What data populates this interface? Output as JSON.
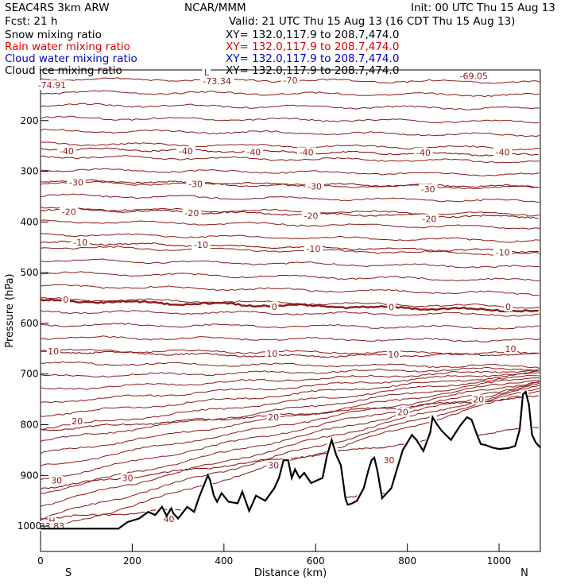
{
  "header": {
    "model": "SEAC4RS  3km ARW",
    "org": "NCAR/MMM",
    "init": "Init: 00 UTC Thu 15 Aug 13",
    "fcst": "Fcst:   21 h",
    "valid": "Valid: 21 UTC Thu 15 Aug 13 (16 CDT Thu 15 Aug 13)"
  },
  "fields": [
    {
      "name": "Snow mixing ratio",
      "xy": "XY= 132.0,117.9 to 208.7,474.0",
      "color": "#000000"
    },
    {
      "name": "Rain water mixing ratio",
      "xy": "XY= 132.0,117.9 to 208.7,474.0",
      "color": "#ff0000"
    },
    {
      "name": "Cloud water mixing ratio",
      "xy": "XY= 132.0,117.9 to 208.7,474.0",
      "color": "#0000c8"
    },
    {
      "name": "Cloud ice mixing ratio",
      "xy": "XY= 132.0,117.9 to 208.7,474.0",
      "color": "#000000"
    }
  ],
  "chart_data": {
    "type": "contour",
    "xlabel": "Distance (km)",
    "ylabel": "Pressure (hPa)",
    "xlim": [
      0,
      1090
    ],
    "ylim": [
      1050,
      100
    ],
    "x_ticks": [
      0,
      200,
      400,
      600,
      800,
      1000
    ],
    "y_ticks": [
      200,
      300,
      400,
      500,
      600,
      700,
      800,
      900,
      1000
    ],
    "x_end_labels": {
      "left": "S",
      "right": "N"
    },
    "contour_color": "#8b1a1a",
    "contour_levels": [
      {
        "level": "-40",
        "pressure": [
          255,
          262,
          268
        ]
      },
      {
        "level": "-30",
        "pressure": [
          318,
          326,
          330
        ]
      },
      {
        "level": "-20",
        "pressure": [
          375,
          384,
          390
        ]
      },
      {
        "level": "-10",
        "pressure": [
          440,
          450,
          458
        ]
      },
      {
        "level": "0",
        "pressure": [
          555,
          565,
          575
        ],
        "bold": true
      },
      {
        "level": "10",
        "pressure": [
          655,
          665,
          660
        ]
      },
      {
        "level": "20",
        "pressure": [
          810,
          780,
          745
        ]
      },
      {
        "level": "30",
        "pressure": [
          925,
          865,
          805
        ]
      },
      {
        "level": "40",
        "pressure": [
          985,
          955,
          900
        ]
      }
    ],
    "contour_labels": [
      {
        "text": "-74.91",
        "x": 25,
        "p": 130
      },
      {
        "text": "L",
        "x": 362,
        "p": 105
      },
      {
        "text": "-73.34",
        "x": 385,
        "p": 122
      },
      {
        "text": "-70",
        "x": 545,
        "p": 120
      },
      {
        "text": "-69.05",
        "x": 945,
        "p": 112
      },
      {
        "text": "-40",
        "x": 57,
        "p": 260
      },
      {
        "text": "-40",
        "x": 317,
        "p": 260
      },
      {
        "text": "-40",
        "x": 465,
        "p": 262
      },
      {
        "text": "-40",
        "x": 580,
        "p": 262
      },
      {
        "text": "-40",
        "x": 835,
        "p": 263
      },
      {
        "text": "-40",
        "x": 1008,
        "p": 262
      },
      {
        "text": "-30",
        "x": 78,
        "p": 322
      },
      {
        "text": "-30",
        "x": 338,
        "p": 325
      },
      {
        "text": "-30",
        "x": 598,
        "p": 330
      },
      {
        "text": "-30",
        "x": 845,
        "p": 335
      },
      {
        "text": "-20",
        "x": 62,
        "p": 380
      },
      {
        "text": "-20",
        "x": 330,
        "p": 382
      },
      {
        "text": "-20",
        "x": 590,
        "p": 388
      },
      {
        "text": "-20",
        "x": 848,
        "p": 394
      },
      {
        "text": "-10",
        "x": 87,
        "p": 440
      },
      {
        "text": "-10",
        "x": 350,
        "p": 445
      },
      {
        "text": "-10",
        "x": 595,
        "p": 453
      },
      {
        "text": "-10",
        "x": 1008,
        "p": 460
      },
      {
        "text": "0",
        "x": 55,
        "p": 553
      },
      {
        "text": "0",
        "x": 510,
        "p": 567
      },
      {
        "text": "0",
        "x": 765,
        "p": 568
      },
      {
        "text": "0",
        "x": 1020,
        "p": 567
      },
      {
        "text": "10",
        "x": 28,
        "p": 655
      },
      {
        "text": "10",
        "x": 505,
        "p": 660
      },
      {
        "text": "10",
        "x": 770,
        "p": 661
      },
      {
        "text": "10",
        "x": 1025,
        "p": 650
      },
      {
        "text": "20",
        "x": 80,
        "p": 793
      },
      {
        "text": "20",
        "x": 508,
        "p": 785
      },
      {
        "text": "20",
        "x": 790,
        "p": 775
      },
      {
        "text": "20",
        "x": 955,
        "p": 750
      },
      {
        "text": "30",
        "x": 35,
        "p": 910
      },
      {
        "text": "30",
        "x": 190,
        "p": 905
      },
      {
        "text": "30",
        "x": 508,
        "p": 880
      },
      {
        "text": "30",
        "x": 760,
        "p": 870
      },
      {
        "text": "40",
        "x": 280,
        "p": 986
      },
      {
        "text": "H",
        "x": 25,
        "p": 990
      },
      {
        "text": "33.83",
        "x": 25,
        "p": 1000
      }
    ],
    "terrain": {
      "x": [
        0,
        170,
        190,
        215,
        235,
        250,
        265,
        275,
        285,
        290,
        300,
        320,
        335,
        345,
        355,
        365,
        370,
        378,
        385,
        395,
        410,
        430,
        440,
        455,
        470,
        490,
        510,
        520,
        530,
        540,
        548,
        555,
        565,
        575,
        590,
        615,
        625,
        635,
        645,
        655,
        665,
        670,
        680,
        690,
        705,
        715,
        722,
        728,
        735,
        745,
        765,
        775,
        790,
        800,
        810,
        820,
        835,
        850,
        855,
        865,
        875,
        895,
        915,
        930,
        940,
        950,
        960,
        970,
        985,
        1000,
        1020,
        1035,
        1045,
        1052,
        1058,
        1065,
        1072,
        1080,
        1090
      ],
      "p": [
        1005,
        1005,
        992,
        985,
        972,
        978,
        962,
        980,
        965,
        975,
        985,
        962,
        972,
        945,
        922,
        900,
        910,
        940,
        952,
        935,
        952,
        955,
        932,
        970,
        940,
        950,
        925,
        905,
        870,
        870,
        905,
        888,
        905,
        895,
        915,
        905,
        860,
        830,
        860,
        880,
        945,
        958,
        955,
        950,
        925,
        890,
        870,
        865,
        892,
        945,
        925,
        895,
        850,
        835,
        820,
        830,
        852,
        815,
        785,
        800,
        812,
        830,
        802,
        785,
        790,
        815,
        838,
        840,
        845,
        848,
        846,
        842,
        810,
        740,
        735,
        760,
        820,
        835,
        845
      ]
    }
  }
}
